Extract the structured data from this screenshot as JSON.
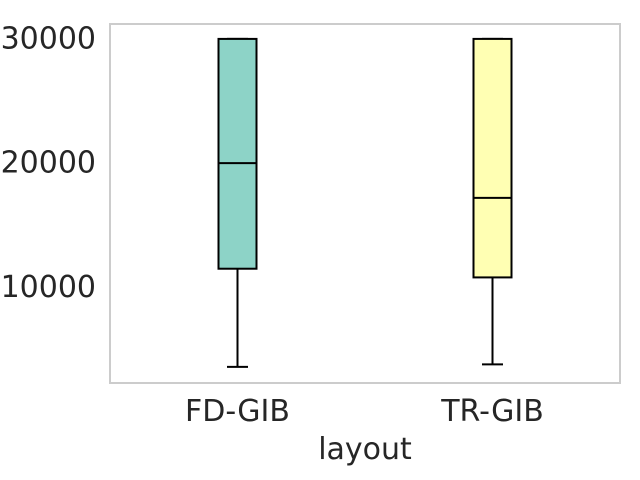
{
  "chart_data": {
    "type": "box",
    "xlabel": "layout",
    "ylabel": "",
    "ylim": [
      2300,
      31200
    ],
    "yticks": [
      10000,
      20000,
      30000
    ],
    "grid": false,
    "boxes": [
      {
        "category": "FD-GIB",
        "color": "#8dd3c7",
        "whisker_low": 3600,
        "q1": 11500,
        "median": 20000,
        "q3": 30000,
        "whisker_high": 30000
      },
      {
        "category": "TR-GIB",
        "color": "#ffffb3",
        "whisker_low": 3800,
        "q1": 10800,
        "median": 17200,
        "q3": 30000,
        "whisker_high": 30000
      }
    ]
  }
}
